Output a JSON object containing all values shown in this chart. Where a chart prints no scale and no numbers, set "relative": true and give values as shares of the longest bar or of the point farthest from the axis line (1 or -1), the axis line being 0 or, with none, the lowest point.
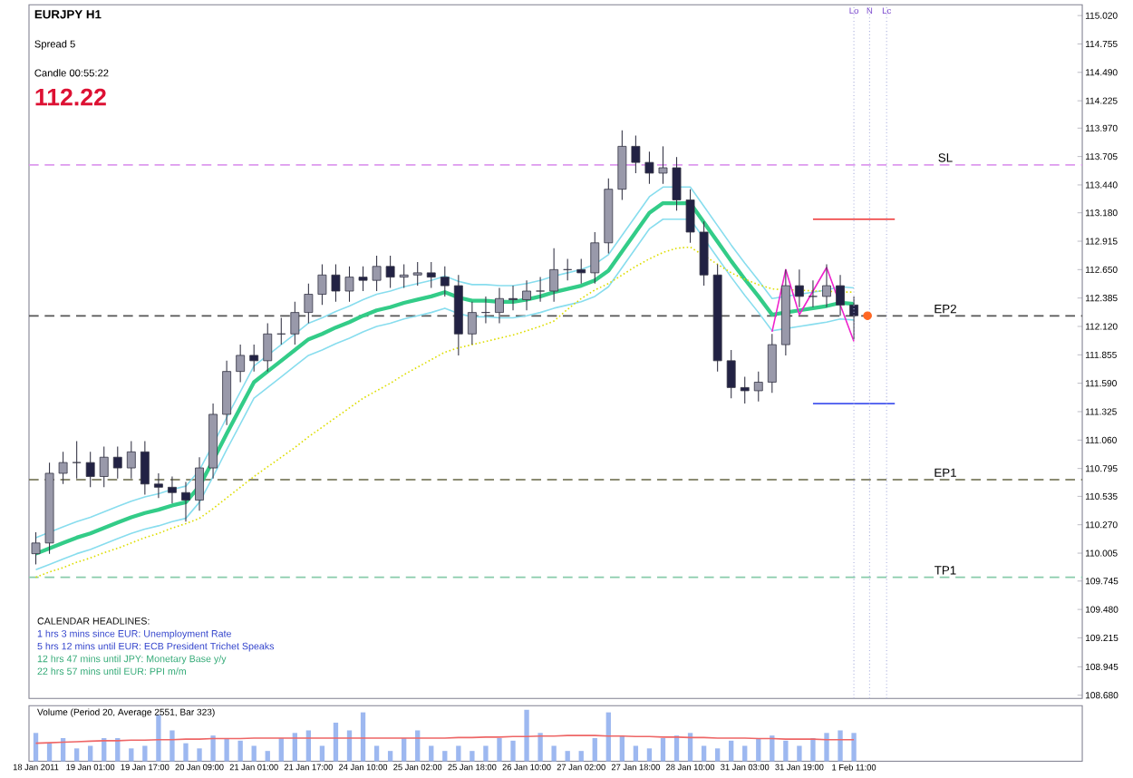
{
  "chart_data": [
    {
      "type": "candlestick",
      "title": "EURJPY  H1",
      "annotations": [
        "Spread  5",
        "Candle  00:55:22",
        "112.22",
        "CALENDAR HEADLINES:",
        "1 hrs 3 mins since EUR: Unemployment Rate",
        "5 hrs 12 mins until EUR: ECB President Trichet Speaks",
        "12 hrs 47 mins until JPY: Monetary Base y/y",
        "22 hrs 57 mins until EUR: PPI m/m",
        "Lo",
        "N",
        "Lc"
      ],
      "ohlc": [
        [
          110.0,
          110.2,
          109.9,
          110.1
        ],
        [
          110.1,
          110.85,
          110.0,
          110.75
        ],
        [
          110.75,
          110.95,
          110.65,
          110.85
        ],
        [
          110.85,
          111.05,
          110.7,
          110.85
        ],
        [
          110.85,
          110.95,
          110.62,
          110.72
        ],
        [
          110.72,
          111.0,
          110.62,
          110.9
        ],
        [
          110.9,
          111.0,
          110.7,
          110.8
        ],
        [
          110.8,
          111.05,
          110.7,
          110.95
        ],
        [
          110.95,
          111.05,
          110.55,
          110.65
        ],
        [
          110.65,
          110.75,
          110.52,
          110.62
        ],
        [
          110.62,
          110.72,
          110.47,
          110.57
        ],
        [
          110.57,
          110.67,
          110.3,
          110.5
        ],
        [
          110.5,
          110.9,
          110.4,
          110.8
        ],
        [
          110.8,
          111.4,
          110.7,
          111.3
        ],
        [
          111.3,
          111.8,
          111.2,
          111.7
        ],
        [
          111.7,
          111.95,
          111.6,
          111.85
        ],
        [
          111.85,
          111.95,
          111.7,
          111.8
        ],
        [
          111.8,
          112.15,
          111.7,
          112.05
        ],
        [
          112.05,
          112.2,
          111.95,
          112.05
        ],
        [
          112.05,
          112.35,
          111.95,
          112.25
        ],
        [
          112.25,
          112.52,
          112.15,
          112.42
        ],
        [
          112.42,
          112.7,
          112.32,
          112.6
        ],
        [
          112.6,
          112.7,
          112.35,
          112.45
        ],
        [
          112.45,
          112.68,
          112.35,
          112.58
        ],
        [
          112.58,
          112.68,
          112.45,
          112.55
        ],
        [
          112.55,
          112.78,
          112.45,
          112.68
        ],
        [
          112.68,
          112.78,
          112.48,
          112.58
        ],
        [
          112.58,
          112.7,
          112.48,
          112.6
        ],
        [
          112.6,
          112.72,
          112.5,
          112.62
        ],
        [
          112.62,
          112.72,
          112.48,
          112.58
        ],
        [
          112.58,
          112.68,
          112.4,
          112.5
        ],
        [
          112.5,
          112.6,
          111.85,
          112.05
        ],
        [
          112.05,
          112.35,
          111.95,
          112.25
        ],
        [
          112.25,
          112.4,
          112.15,
          112.25
        ],
        [
          112.25,
          112.48,
          112.15,
          112.38
        ],
        [
          112.38,
          112.5,
          112.27,
          112.37
        ],
        [
          112.37,
          112.55,
          112.27,
          112.45
        ],
        [
          112.45,
          112.58,
          112.35,
          112.45
        ],
        [
          112.45,
          112.85,
          112.35,
          112.65
        ],
        [
          112.65,
          112.75,
          112.55,
          112.65
        ],
        [
          112.65,
          112.75,
          112.52,
          112.62
        ],
        [
          112.62,
          113.0,
          112.52,
          112.9
        ],
        [
          112.9,
          113.5,
          112.8,
          113.4
        ],
        [
          113.4,
          113.95,
          113.3,
          113.8
        ],
        [
          113.8,
          113.9,
          113.55,
          113.65
        ],
        [
          113.65,
          113.75,
          113.45,
          113.55
        ],
        [
          113.55,
          113.8,
          113.45,
          113.6
        ],
        [
          113.6,
          113.7,
          113.2,
          113.3
        ],
        [
          113.3,
          113.4,
          112.9,
          113.0
        ],
        [
          113.0,
          113.1,
          112.5,
          112.6
        ],
        [
          112.6,
          112.7,
          111.7,
          111.8
        ],
        [
          111.8,
          111.9,
          111.45,
          111.55
        ],
        [
          111.55,
          111.65,
          111.4,
          111.52
        ],
        [
          111.52,
          111.7,
          111.42,
          111.6
        ],
        [
          111.6,
          112.05,
          111.5,
          111.95
        ],
        [
          111.95,
          112.65,
          111.85,
          112.5
        ],
        [
          112.5,
          112.65,
          112.3,
          112.4
        ],
        [
          112.4,
          112.55,
          112.3,
          112.4
        ],
        [
          112.4,
          112.7,
          112.3,
          112.5
        ],
        [
          112.5,
          112.6,
          112.22,
          112.32
        ],
        [
          112.32,
          112.4,
          112.0,
          112.22
        ],
        null,
        null,
        null,
        null,
        null,
        null,
        null,
        null,
        null,
        null,
        null,
        null,
        null,
        null,
        null,
        null
      ],
      "series": [
        {
          "type": "line",
          "color": "#33cc88",
          "values": [
            110.0,
            110.05,
            110.1,
            110.15,
            110.19,
            110.24,
            110.29,
            110.34,
            110.38,
            110.41,
            110.45,
            110.48,
            110.63,
            110.87,
            111.12,
            111.36,
            111.6,
            111.7,
            111.8,
            111.9,
            112.0,
            112.05,
            112.11,
            112.16,
            112.22,
            112.27,
            112.3,
            112.34,
            112.37,
            112.4,
            112.44,
            112.39,
            112.36,
            112.36,
            112.35,
            112.35,
            112.37,
            112.4,
            112.44,
            112.47,
            112.5,
            112.55,
            112.64,
            112.82,
            113.0,
            113.18,
            113.27,
            113.27,
            113.27,
            113.09,
            112.91,
            112.73,
            112.56,
            112.4,
            112.23,
            112.25,
            112.27,
            112.29,
            112.31,
            112.34,
            112.33,
            null,
            null,
            null,
            null,
            null,
            null,
            null,
            null,
            null,
            null,
            null,
            null,
            null,
            null,
            null,
            null
          ]
        },
        {
          "type": "line",
          "color": "#88ddee",
          "values": [
            110.15,
            110.2,
            110.25,
            110.3,
            110.34,
            110.39,
            110.44,
            110.49,
            110.53,
            110.56,
            110.6,
            110.63,
            110.78,
            111.02,
            111.27,
            111.51,
            111.75,
            111.85,
            111.95,
            112.05,
            112.15,
            112.2,
            112.26,
            112.31,
            112.37,
            112.42,
            112.45,
            112.49,
            112.52,
            112.55,
            112.59,
            112.54,
            112.51,
            112.51,
            112.5,
            112.5,
            112.52,
            112.55,
            112.59,
            112.62,
            112.65,
            112.7,
            112.79,
            112.97,
            113.15,
            113.33,
            113.42,
            113.42,
            113.42,
            113.24,
            113.06,
            112.88,
            112.71,
            112.55,
            112.38,
            112.4,
            112.42,
            112.44,
            112.46,
            112.49,
            112.48,
            null,
            null,
            null,
            null,
            null,
            null,
            null,
            null,
            null,
            null,
            null,
            null,
            null,
            null,
            null,
            null
          ]
        },
        {
          "type": "line",
          "color": "#88ddee",
          "values": [
            109.85,
            109.9,
            109.95,
            110.0,
            110.04,
            110.09,
            110.14,
            110.19,
            110.23,
            110.26,
            110.3,
            110.33,
            110.48,
            110.72,
            110.97,
            111.21,
            111.45,
            111.55,
            111.65,
            111.75,
            111.85,
            111.9,
            111.96,
            112.01,
            112.07,
            112.12,
            112.15,
            112.19,
            112.22,
            112.25,
            112.29,
            112.24,
            112.21,
            112.21,
            112.2,
            112.2,
            112.22,
            112.25,
            112.29,
            112.32,
            112.35,
            112.4,
            112.49,
            112.67,
            112.85,
            113.03,
            113.12,
            113.12,
            113.12,
            112.94,
            112.76,
            112.58,
            112.41,
            112.25,
            112.08,
            112.1,
            112.12,
            112.14,
            112.16,
            112.19,
            112.18,
            null,
            null,
            null,
            null,
            null,
            null,
            null,
            null,
            null,
            null,
            null,
            null,
            null,
            null,
            null,
            null
          ]
        },
        {
          "type": "line",
          "color": "#dddd00",
          "line_style": "dotted",
          "values": [
            109.78,
            109.83,
            109.87,
            109.92,
            109.96,
            110.01,
            110.05,
            110.1,
            110.15,
            110.19,
            110.24,
            110.28,
            110.33,
            110.42,
            110.52,
            110.62,
            110.72,
            110.81,
            110.9,
            110.99,
            111.09,
            111.18,
            111.27,
            111.36,
            111.45,
            111.52,
            111.59,
            111.67,
            111.74,
            111.81,
            111.88,
            111.92,
            111.95,
            111.98,
            112.01,
            112.04,
            112.08,
            112.12,
            112.17,
            112.28,
            112.38,
            112.46,
            112.52,
            112.6,
            112.68,
            112.75,
            112.81,
            112.85,
            112.86,
            112.78,
            112.7,
            112.62,
            112.56,
            112.51,
            112.47,
            112.46,
            112.46,
            112.45,
            112.45,
            112.44,
            112.44,
            null,
            null,
            null,
            null,
            null,
            null,
            null,
            null,
            null,
            null,
            null,
            null,
            null,
            null,
            null,
            null
          ]
        },
        {
          "type": "line",
          "color": "#ee22cc",
          "values": [
            null,
            null,
            null,
            null,
            null,
            null,
            null,
            null,
            null,
            null,
            null,
            null,
            null,
            null,
            null,
            null,
            null,
            null,
            null,
            null,
            null,
            null,
            null,
            null,
            null,
            null,
            null,
            null,
            null,
            null,
            null,
            null,
            null,
            null,
            null,
            null,
            null,
            null,
            null,
            null,
            null,
            null,
            null,
            null,
            null,
            null,
            null,
            null,
            null,
            null,
            null,
            null,
            null,
            null,
            112.07,
            112.65,
            112.23,
            112.45,
            112.67,
            112.32,
            111.98,
            null,
            null,
            null,
            null,
            null,
            null,
            null,
            null,
            null,
            null,
            null,
            null,
            null,
            null,
            null,
            null
          ]
        },
        {
          "type": "line",
          "color": "#ee3333",
          "values": [
            null,
            null,
            null,
            null,
            null,
            null,
            null,
            null,
            null,
            null,
            null,
            null,
            null,
            null,
            null,
            null,
            null,
            null,
            null,
            null,
            null,
            null,
            null,
            null,
            null,
            null,
            null,
            null,
            null,
            null,
            null,
            null,
            null,
            null,
            null,
            null,
            null,
            null,
            null,
            null,
            null,
            null,
            null,
            null,
            null,
            null,
            null,
            null,
            null,
            null,
            null,
            null,
            null,
            null,
            null,
            null,
            null,
            113.12,
            113.12,
            113.12,
            113.12,
            113.12,
            113.12,
            113.12,
            null,
            null,
            null,
            null,
            null,
            null,
            null,
            null,
            null,
            null,
            null,
            null,
            null
          ]
        },
        {
          "type": "line",
          "color": "#4455ee",
          "values": [
            null,
            null,
            null,
            null,
            null,
            null,
            null,
            null,
            null,
            null,
            null,
            null,
            null,
            null,
            null,
            null,
            null,
            null,
            null,
            null,
            null,
            null,
            null,
            null,
            null,
            null,
            null,
            null,
            null,
            null,
            null,
            null,
            null,
            null,
            null,
            null,
            null,
            null,
            null,
            null,
            null,
            null,
            null,
            null,
            null,
            null,
            null,
            null,
            null,
            null,
            null,
            null,
            null,
            null,
            null,
            null,
            null,
            111.4,
            111.4,
            111.4,
            111.4,
            111.4,
            111.4,
            111.4,
            null,
            null,
            null,
            null,
            null,
            null,
            null,
            null,
            null,
            null,
            null,
            null,
            null
          ]
        },
        {
          "type": "scatter",
          "color": "#ff6622",
          "values": [
            null,
            null,
            null,
            null,
            null,
            null,
            null,
            null,
            null,
            null,
            null,
            null,
            null,
            null,
            null,
            null,
            null,
            null,
            null,
            null,
            null,
            null,
            null,
            null,
            null,
            null,
            null,
            null,
            null,
            null,
            null,
            null,
            null,
            null,
            null,
            null,
            null,
            null,
            null,
            null,
            null,
            null,
            null,
            null,
            null,
            null,
            null,
            null,
            null,
            null,
            null,
            null,
            null,
            null,
            null,
            null,
            null,
            null,
            null,
            null,
            null,
            112.22,
            null,
            null,
            null,
            null,
            null,
            null,
            null,
            null,
            null,
            null,
            null,
            null,
            null,
            null,
            null
          ]
        }
      ],
      "ref_lines": [
        {
          "axis": "y",
          "value": 113.627,
          "label": "SL",
          "color": "#dd99ee",
          "line_style": "dashed"
        },
        {
          "axis": "y",
          "value": 112.218,
          "label": "EP2",
          "color": "#555555",
          "line_style": "dashed"
        },
        {
          "axis": "y",
          "value": 110.69,
          "label": "EP1",
          "color": "#666644",
          "line_style": "dashed"
        },
        {
          "axis": "y",
          "value": 109.78,
          "label": "TP1",
          "color": "#88ccaa",
          "line_style": "dashed"
        }
      ],
      "ylim": [
        108.65,
        115.12
      ],
      "tick_labels": "y",
      "yticks": [
        {
          "value": 115.02,
          "label": "115.020"
        },
        {
          "value": 114.755,
          "label": "114.755"
        },
        {
          "value": 114.49,
          "label": "114.490"
        },
        {
          "value": 114.225,
          "label": "114.225"
        },
        {
          "value": 113.97,
          "label": "113.970"
        },
        {
          "value": 113.705,
          "label": "113.705"
        },
        {
          "value": 113.44,
          "label": "113.440"
        },
        {
          "value": 113.18,
          "label": "113.180"
        },
        {
          "value": 112.915,
          "label": "112.915"
        },
        {
          "value": 112.65,
          "label": "112.650"
        },
        {
          "value": 112.385,
          "label": "112.385"
        },
        {
          "value": 112.12,
          "label": "112.120"
        },
        {
          "value": 111.855,
          "label": "111.855"
        },
        {
          "value": 111.59,
          "label": "111.590"
        },
        {
          "value": 111.325,
          "label": "111.325"
        },
        {
          "value": 111.06,
          "label": "111.060"
        },
        {
          "value": 110.795,
          "label": "110.795"
        },
        {
          "value": 110.535,
          "label": "110.535"
        },
        {
          "value": 110.27,
          "label": "110.270"
        },
        {
          "value": 110.005,
          "label": "110.005"
        },
        {
          "value": 109.745,
          "label": "109.745"
        },
        {
          "value": 109.48,
          "label": "109.480"
        },
        {
          "value": 109.215,
          "label": "109.215"
        },
        {
          "value": 108.945,
          "label": "108.945"
        },
        {
          "value": 108.68,
          "label": "108.680"
        }
      ]
    },
    {
      "type": "bar",
      "title": "Volume (Period 20, Average 2551, Bar 323)",
      "relative": true,
      "tick_labels": "x",
      "categories": [
        "18 Jan 2011",
        null,
        null,
        null,
        "19 Jan 01:00",
        null,
        null,
        null,
        "19 Jan 17:00",
        null,
        null,
        null,
        "20 Jan 09:00",
        null,
        null,
        null,
        "21 Jan 01:00",
        null,
        null,
        null,
        "21 Jan 17:00",
        null,
        null,
        null,
        "24 Jan 10:00",
        null,
        null,
        null,
        "25 Jan 02:00",
        null,
        null,
        null,
        "25 Jan 18:00",
        null,
        null,
        null,
        "26 Jan 10:00",
        null,
        null,
        null,
        "27 Jan 02:00",
        null,
        null,
        null,
        "27 Jan 18:00",
        null,
        null,
        null,
        "28 Jan 10:00",
        null,
        null,
        null,
        "31 Jan 03:00",
        null,
        null,
        null,
        "31 Jan 19:00",
        null,
        null,
        null,
        "1 Feb 11:00",
        null,
        null,
        null,
        null,
        null,
        null,
        null,
        null,
        null,
        null,
        null,
        null,
        null,
        null,
        null,
        null
      ],
      "series": [
        {
          "type": "bar",
          "color": "#9db8f0",
          "values": [
            0.55,
            0.35,
            0.45,
            0.25,
            0.3,
            0.45,
            0.45,
            0.25,
            0.3,
            0.9,
            0.6,
            0.35,
            0.25,
            0.5,
            0.45,
            0.4,
            0.3,
            0.2,
            0.45,
            0.55,
            0.6,
            0.3,
            0.75,
            0.6,
            0.95,
            0.3,
            0.2,
            0.45,
            0.6,
            0.3,
            0.2,
            0.3,
            0.2,
            0.3,
            0.45,
            0.4,
            1.0,
            0.55,
            0.3,
            0.2,
            0.2,
            0.45,
            0.95,
            0.5,
            0.3,
            0.25,
            0.45,
            0.5,
            0.55,
            0.3,
            0.25,
            0.4,
            0.3,
            0.45,
            0.5,
            0.4,
            0.3,
            0.45,
            0.55,
            0.6,
            0.55,
            null,
            null,
            null,
            null,
            null,
            null,
            null,
            null,
            null,
            null,
            null,
            null,
            null,
            null,
            null,
            null
          ]
        },
        {
          "type": "line",
          "color": "#ee6666",
          "values": [
            0.35,
            0.36,
            0.37,
            0.38,
            0.39,
            0.4,
            0.4,
            0.41,
            0.41,
            0.42,
            0.42,
            0.43,
            0.43,
            0.44,
            0.44,
            0.44,
            0.45,
            0.45,
            0.45,
            0.45,
            0.45,
            0.45,
            0.45,
            0.45,
            0.45,
            0.45,
            0.45,
            0.45,
            0.45,
            0.45,
            0.45,
            0.46,
            0.46,
            0.47,
            0.47,
            0.48,
            0.48,
            0.49,
            0.49,
            0.5,
            0.5,
            0.5,
            0.49,
            0.49,
            0.48,
            0.48,
            0.47,
            0.47,
            0.46,
            0.46,
            0.45,
            0.45,
            0.45,
            0.44,
            0.44,
            0.43,
            0.43,
            0.43,
            0.42,
            0.42,
            0.42,
            null,
            null,
            null,
            null,
            null,
            null,
            null,
            null,
            null,
            null,
            null,
            null,
            null,
            null,
            null,
            null
          ]
        }
      ]
    }
  ]
}
